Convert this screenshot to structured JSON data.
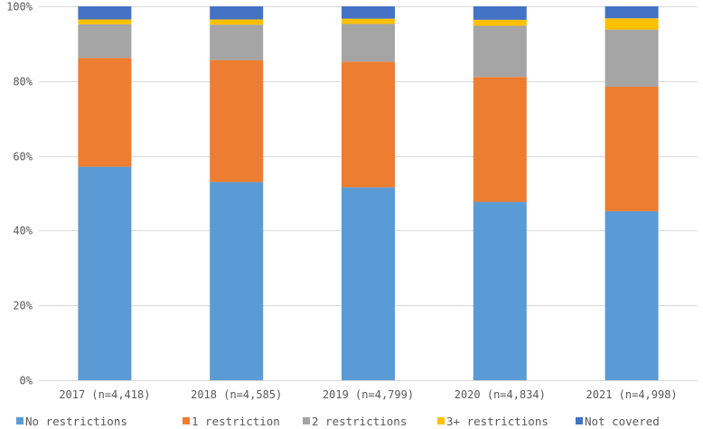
{
  "chart_data": {
    "type": "bar",
    "stacked": true,
    "categories": [
      "2017 (n=4,418)",
      "2018 (n=4,585)",
      "2019 (n=4,799)",
      "2020 (n=4,834)",
      "2021 (n=4,998)"
    ],
    "series": [
      {
        "name": "No restrictions",
        "color": "#5b9bd5",
        "values": [
          57.1,
          53.0,
          51.6,
          47.7,
          45.2
        ]
      },
      {
        "name": "1 restriction",
        "color": "#ed7d31",
        "values": [
          29.1,
          32.6,
          33.6,
          33.4,
          33.3
        ]
      },
      {
        "name": "2 restrictions",
        "color": "#a5a5a5",
        "values": [
          9.0,
          9.5,
          10.1,
          13.7,
          15.3
        ]
      },
      {
        "name": "3+ restrictions",
        "color": "#ffc000",
        "values": [
          1.3,
          1.4,
          1.4,
          1.6,
          3.0
        ]
      },
      {
        "name": "Not covered",
        "color": "#4472c4",
        "values": [
          3.5,
          3.5,
          3.3,
          3.6,
          3.2
        ]
      }
    ],
    "ylim": [
      0,
      100
    ],
    "yticks": [
      0,
      20,
      40,
      60,
      80,
      100
    ],
    "ytick_labels": [
      "0%",
      "20%",
      "40%",
      "60%",
      "80%",
      "100%"
    ],
    "grid": true,
    "legend_position": "bottom"
  }
}
